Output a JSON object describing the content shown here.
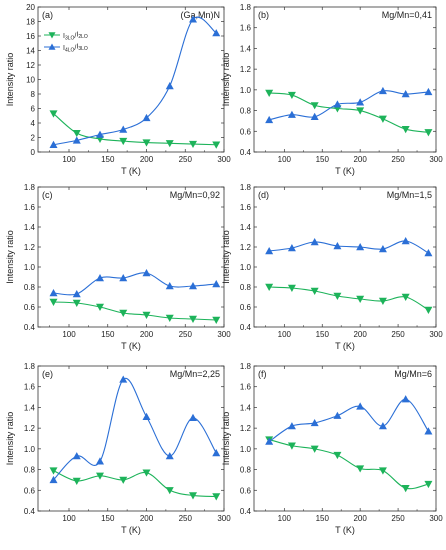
{
  "colors": {
    "green": "#1db35a",
    "blue": "#2b6fd6",
    "axis": "#333333"
  },
  "chart_data": [
    {
      "type": "line",
      "panel_label": "(a)",
      "annotation": "(Ga,Mn)N",
      "xlabel": "T (K)",
      "ylabel": "Intensity ratio",
      "xlim": [
        60,
        300
      ],
      "ylim": [
        0,
        20
      ],
      "xticks": [
        "100",
        "150",
        "200",
        "250",
        "300"
      ],
      "yticks": [
        "0",
        "2",
        "4",
        "6",
        "8",
        "10",
        "12",
        "14",
        "16",
        "18",
        "20"
      ],
      "legend": {
        "placement": "top-left",
        "entries": [
          {
            "base": "I",
            "sub": "3LO",
            "sep": "/",
            "base2": "I",
            "sub2": "2LO"
          },
          {
            "base": "I",
            "sub": "4LO",
            "sep": "/",
            "base2": "I",
            "sub2": "3LO"
          }
        ]
      },
      "series": [
        {
          "color": "green",
          "marker": "triangle-down",
          "x": [
            80,
            110,
            140,
            170,
            200,
            230,
            260,
            290
          ],
          "y": [
            5.3,
            2.6,
            1.8,
            1.5,
            1.3,
            1.2,
            1.1,
            1.0
          ]
        },
        {
          "color": "blue",
          "marker": "triangle-up",
          "x": [
            80,
            110,
            140,
            170,
            200,
            230,
            260,
            290
          ],
          "y": [
            1.0,
            1.6,
            2.4,
            3.1,
            4.7,
            9.1,
            18.3,
            16.4
          ]
        }
      ]
    },
    {
      "type": "line",
      "panel_label": "(b)",
      "annotation": "Mg/Mn=0,41",
      "xlabel": "T (K)",
      "ylabel": "Intensity ratio",
      "xlim": [
        60,
        300
      ],
      "ylim": [
        0.4,
        1.8
      ],
      "xticks": [
        "100",
        "150",
        "200",
        "250",
        "300"
      ],
      "yticks": [
        "0.4",
        "0.6",
        "0.8",
        "1.0",
        "1.2",
        "1.4",
        "1.6",
        "1.8"
      ],
      "series": [
        {
          "color": "green",
          "marker": "triangle-down",
          "x": [
            80,
            110,
            140,
            170,
            200,
            230,
            260,
            290
          ],
          "y": [
            0.97,
            0.95,
            0.85,
            0.82,
            0.8,
            0.72,
            0.62,
            0.59
          ]
        },
        {
          "color": "blue",
          "marker": "triangle-up",
          "x": [
            80,
            110,
            140,
            170,
            200,
            230,
            260,
            290
          ],
          "y": [
            0.71,
            0.76,
            0.74,
            0.86,
            0.88,
            0.99,
            0.96,
            0.98
          ]
        }
      ]
    },
    {
      "type": "line",
      "panel_label": "(c)",
      "annotation": "Mg/Mn=0,92",
      "xlabel": "T (K)",
      "ylabel": "Intensity ratio",
      "xlim": [
        60,
        300
      ],
      "ylim": [
        0.4,
        1.8
      ],
      "xticks": [
        "100",
        "150",
        "200",
        "250",
        "300"
      ],
      "yticks": [
        "0.4",
        "0.6",
        "0.8",
        "1.0",
        "1.2",
        "1.4",
        "1.6",
        "1.8"
      ],
      "series": [
        {
          "color": "green",
          "marker": "triangle-down",
          "x": [
            80,
            110,
            140,
            170,
            200,
            230,
            260,
            290
          ],
          "y": [
            0.65,
            0.64,
            0.6,
            0.54,
            0.52,
            0.49,
            0.48,
            0.47
          ]
        },
        {
          "color": "blue",
          "marker": "triangle-up",
          "x": [
            80,
            110,
            140,
            170,
            200,
            230,
            260,
            290
          ],
          "y": [
            0.74,
            0.73,
            0.89,
            0.89,
            0.94,
            0.81,
            0.81,
            0.83
          ]
        }
      ]
    },
    {
      "type": "line",
      "panel_label": "(d)",
      "annotation": "Mg/Mn=1,5",
      "xlabel": "T (K)",
      "ylabel": "Intensity ratio",
      "xlim": [
        60,
        300
      ],
      "ylim": [
        0.4,
        1.8
      ],
      "xticks": [
        "100",
        "150",
        "200",
        "250",
        "300"
      ],
      "yticks": [
        "0.4",
        "0.6",
        "0.8",
        "1.0",
        "1.2",
        "1.4",
        "1.6",
        "1.8"
      ],
      "series": [
        {
          "color": "green",
          "marker": "triangle-down",
          "x": [
            80,
            110,
            140,
            170,
            200,
            230,
            260,
            290
          ],
          "y": [
            0.8,
            0.79,
            0.76,
            0.71,
            0.68,
            0.66,
            0.7,
            0.57
          ]
        },
        {
          "color": "blue",
          "marker": "triangle-up",
          "x": [
            80,
            110,
            140,
            170,
            200,
            230,
            260,
            290
          ],
          "y": [
            1.16,
            1.19,
            1.25,
            1.21,
            1.2,
            1.18,
            1.26,
            1.14
          ]
        }
      ]
    },
    {
      "type": "line",
      "panel_label": "(e)",
      "annotation": "Mg/Mn=2,25",
      "xlabel": "T (K)",
      "ylabel": "Intensity ratio",
      "xlim": [
        60,
        300
      ],
      "ylim": [
        0.4,
        1.8
      ],
      "xticks": [
        "100",
        "150",
        "200",
        "250",
        "300"
      ],
      "yticks": [
        "0.4",
        "0.6",
        "0.8",
        "1.0",
        "1.2",
        "1.4",
        "1.6",
        "1.8"
      ],
      "series": [
        {
          "color": "green",
          "marker": "triangle-down",
          "x": [
            80,
            110,
            140,
            170,
            200,
            230,
            260,
            290
          ],
          "y": [
            0.79,
            0.69,
            0.74,
            0.7,
            0.77,
            0.6,
            0.55,
            0.54
          ]
        },
        {
          "color": "blue",
          "marker": "triangle-up",
          "x": [
            80,
            110,
            140,
            170,
            200,
            230,
            260,
            290
          ],
          "y": [
            0.7,
            0.93,
            0.88,
            1.67,
            1.31,
            0.93,
            1.3,
            0.96
          ]
        }
      ]
    },
    {
      "type": "line",
      "panel_label": "(f)",
      "annotation": "Mg/Mn=6",
      "xlabel": "T (K)",
      "ylabel": "Intensity ratio",
      "xlim": [
        60,
        300
      ],
      "ylim": [
        0.4,
        1.8
      ],
      "xticks": [
        "100",
        "150",
        "200",
        "250",
        "300"
      ],
      "yticks": [
        "0.4",
        "0.6",
        "0.8",
        "1.0",
        "1.2",
        "1.4",
        "1.6",
        "1.8"
      ],
      "series": [
        {
          "color": "green",
          "marker": "triangle-down",
          "x": [
            80,
            110,
            140,
            170,
            200,
            230,
            260,
            290
          ],
          "y": [
            1.09,
            1.03,
            1.0,
            0.94,
            0.81,
            0.79,
            0.62,
            0.66
          ]
        },
        {
          "color": "blue",
          "marker": "triangle-up",
          "x": [
            80,
            110,
            140,
            170,
            200,
            230,
            260,
            290
          ],
          "y": [
            1.07,
            1.22,
            1.25,
            1.32,
            1.41,
            1.22,
            1.48,
            1.17
          ]
        }
      ]
    }
  ]
}
